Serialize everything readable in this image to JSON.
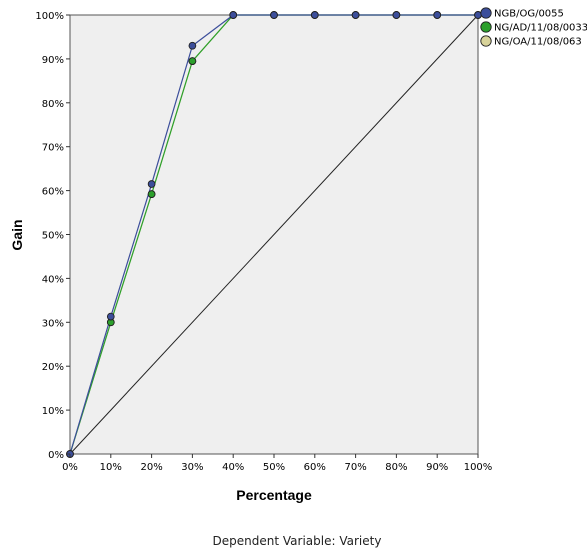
{
  "chart_data": {
    "type": "line",
    "xlabel": "Percentage",
    "ylabel": "Gain",
    "xlim": [
      0,
      100
    ],
    "ylim": [
      0,
      100
    ],
    "x_ticks": [
      "0%",
      "10%",
      "20%",
      "30%",
      "40%",
      "50%",
      "60%",
      "70%",
      "80%",
      "90%",
      "100%"
    ],
    "y_ticks": [
      "0%",
      "10%",
      "20%",
      "30%",
      "40%",
      "50%",
      "60%",
      "70%",
      "80%",
      "90%",
      "100%"
    ],
    "x": [
      0,
      10,
      20,
      30,
      40,
      50,
      60,
      70,
      80,
      90,
      100
    ],
    "series": [
      {
        "name": "NGB/OG/0055",
        "color": "#3c4e9b",
        "values": [
          0,
          31.3,
          61.5,
          93,
          100,
          100,
          100,
          100,
          100,
          100,
          100
        ]
      },
      {
        "name": "NG/AD/11/08/0033",
        "color": "#2ca02c",
        "values": [
          0,
          30,
          59.2,
          89.5,
          100,
          100,
          100,
          100,
          100,
          100,
          100
        ]
      },
      {
        "name": "NG/OA/11/08/063",
        "color": "#d8d39a",
        "values": [
          0,
          30,
          59.2,
          89.5,
          100,
          100,
          100,
          100,
          100,
          100,
          100
        ]
      }
    ],
    "baseline": {
      "x": [
        0,
        100
      ],
      "y": [
        0,
        100
      ]
    },
    "grid": false,
    "legend_position": "top-right",
    "plot_background": "#efefef",
    "footnote": "Dependent Variable: Variety"
  }
}
